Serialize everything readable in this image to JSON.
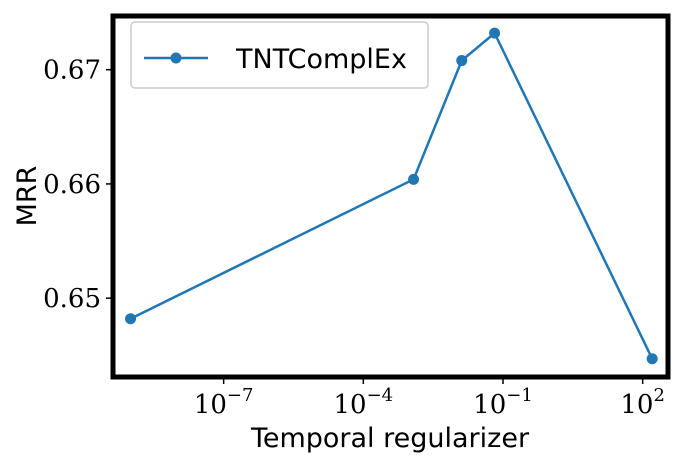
{
  "chart_data": {
    "type": "line",
    "x_label": "Temporal regularizer",
    "y_label": "MRR",
    "x_scale": "log",
    "x": [
      1e-09,
      0.0012,
      0.013,
      0.066,
      160
    ],
    "series": [
      {
        "name": "TNTComplEx",
        "color": "#1f77b4",
        "values": [
          0.6482,
          0.6604,
          0.6708,
          0.6732,
          0.6447
        ]
      }
    ],
    "xlim": [
      4.2e-10,
      350
    ],
    "ylim": [
      0.6431,
      0.6747
    ],
    "xticks": [
      {
        "value": 1e-07,
        "label": "10^-7"
      },
      {
        "value": 0.0001,
        "label": "10^-4"
      },
      {
        "value": 0.1,
        "label": "10^-1"
      },
      {
        "value": 100,
        "label": "10^2"
      }
    ],
    "yticks": [
      0.65,
      0.66,
      0.67
    ],
    "legend": "upper left",
    "grid": false
  }
}
